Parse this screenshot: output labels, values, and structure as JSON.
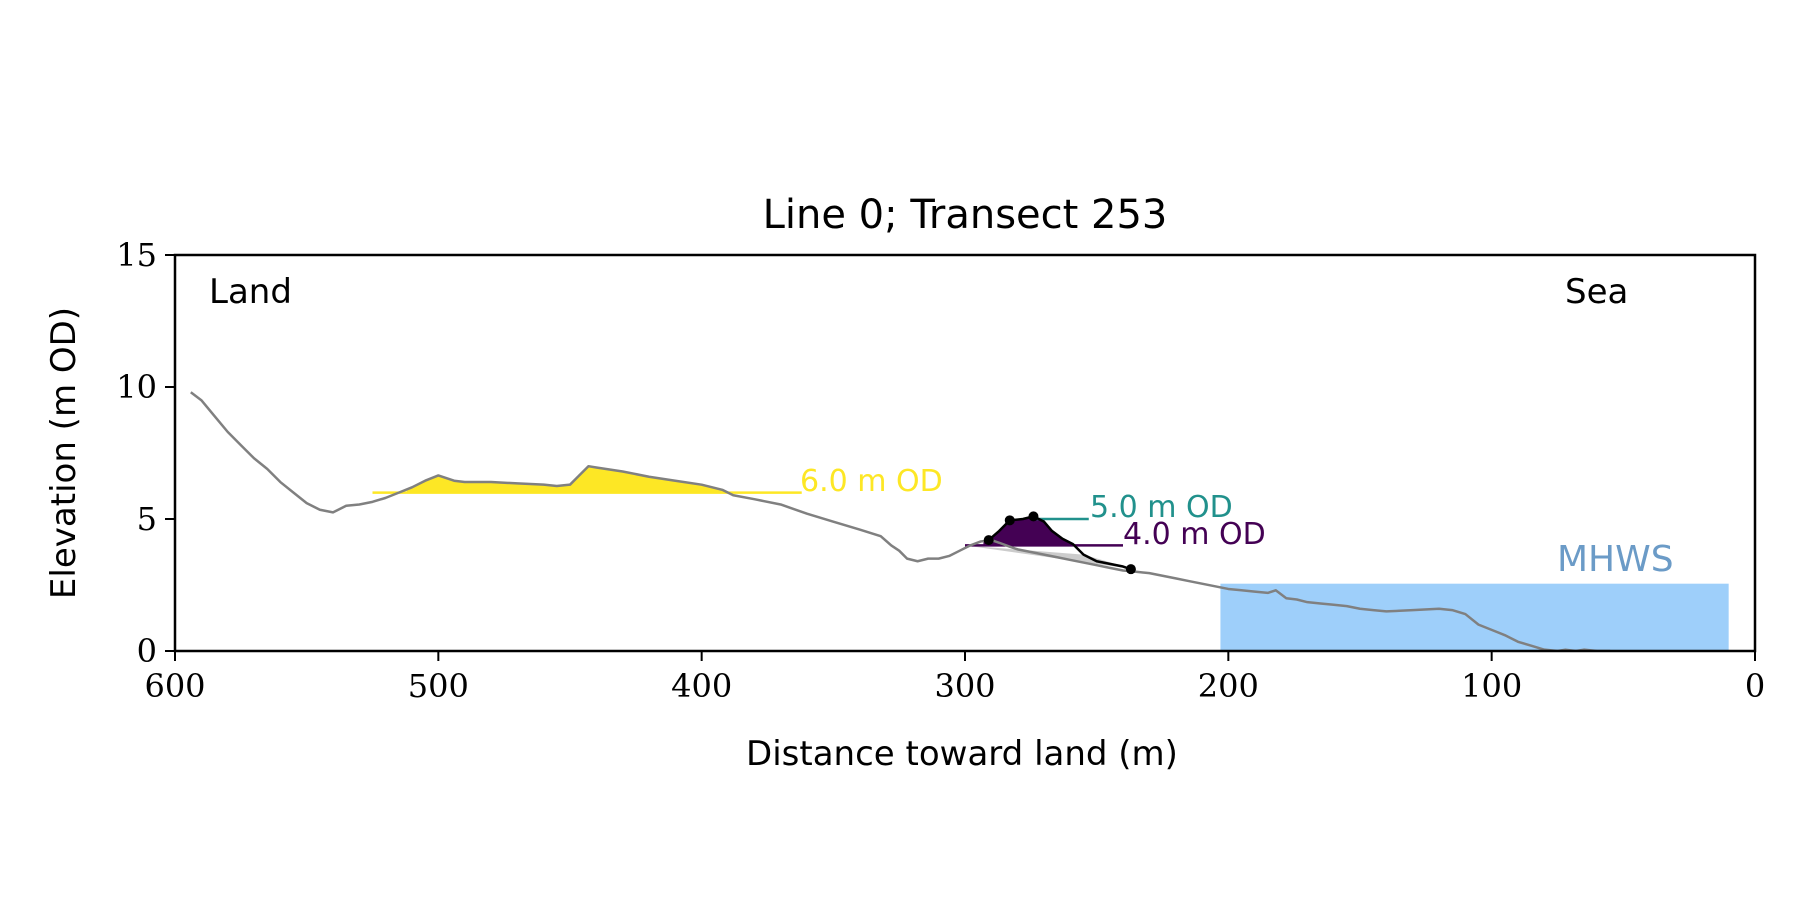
{
  "chart_data": {
    "type": "line",
    "title": "Line 0; Transect 253",
    "xlabel": "Distance toward land (m)",
    "ylabel": "Elevation (m OD)",
    "xlim": [
      600,
      0
    ],
    "ylim": [
      0,
      15
    ],
    "xticks": [
      600,
      500,
      400,
      300,
      200,
      100,
      0
    ],
    "yticks": [
      0,
      5,
      10,
      15
    ],
    "tick_labels_x": [
      "600",
      "500",
      "400",
      "300",
      "200",
      "100",
      "0"
    ],
    "tick_labels_y": [
      "0",
      "5",
      "10",
      "15"
    ],
    "grid": false,
    "legend": "none",
    "annotations": {
      "land": "Land",
      "sea": "Sea",
      "mhws": "MHWS",
      "level6": "6.0 m OD",
      "level5": "5.0 m OD",
      "level4": "4.0 m OD"
    },
    "colors": {
      "profile": "#808080",
      "dune": "#000000",
      "level6": "#fde725",
      "level5": "#21918c",
      "level4": "#440154",
      "mhws_fill": "#9ecffa",
      "mhws_text": "#6b9bc7",
      "shadow": "#cccccc"
    },
    "profile": {
      "x": [
        594,
        590,
        585,
        580,
        575,
        570,
        565,
        560,
        555,
        550,
        545,
        540,
        535,
        530,
        525,
        520,
        515,
        510,
        505,
        500,
        497,
        494,
        490,
        485,
        480,
        470,
        460,
        455,
        450,
        447,
        443,
        440,
        430,
        420,
        410,
        400,
        392,
        388,
        380,
        370,
        360,
        350,
        340,
        332,
        328,
        325,
        322,
        318,
        314,
        310,
        306,
        302,
        298,
        294,
        290,
        287,
        283,
        280,
        275,
        270,
        265,
        260,
        255,
        250,
        245,
        240,
        235,
        230,
        225,
        220,
        215,
        210,
        205,
        200,
        195,
        190,
        185,
        182,
        178,
        174,
        170,
        165,
        160,
        155,
        150,
        145,
        140,
        130,
        120,
        115,
        110,
        105,
        100,
        95,
        90,
        85,
        80,
        75,
        72,
        68,
        65,
        60,
        55
      ],
      "y": [
        9.8,
        9.5,
        8.9,
        8.3,
        7.8,
        7.3,
        6.9,
        6.4,
        6.0,
        5.6,
        5.35,
        5.25,
        5.5,
        5.55,
        5.65,
        5.8,
        6.0,
        6.2,
        6.45,
        6.65,
        6.55,
        6.45,
        6.4,
        6.4,
        6.4,
        6.35,
        6.3,
        6.25,
        6.3,
        6.6,
        7.0,
        6.95,
        6.8,
        6.6,
        6.45,
        6.3,
        6.1,
        5.9,
        5.75,
        5.55,
        5.2,
        4.9,
        4.6,
        4.35,
        4.0,
        3.8,
        3.5,
        3.4,
        3.5,
        3.5,
        3.6,
        3.8,
        4.0,
        4.15,
        4.2,
        4.1,
        3.95,
        3.85,
        3.75,
        3.65,
        3.55,
        3.45,
        3.35,
        3.25,
        3.15,
        3.05,
        3.0,
        2.95,
        2.85,
        2.75,
        2.65,
        2.55,
        2.45,
        2.35,
        2.3,
        2.25,
        2.2,
        2.3,
        2.0,
        1.95,
        1.85,
        1.8,
        1.75,
        1.7,
        1.6,
        1.55,
        1.5,
        1.55,
        1.6,
        1.55,
        1.4,
        1.0,
        0.8,
        0.6,
        0.35,
        0.2,
        0.05,
        0.0,
        0.05,
        0.0,
        0.05,
        0.0,
        0.0
      ]
    },
    "dune_profile": {
      "x": [
        291,
        287,
        283,
        278,
        274,
        270,
        267,
        263,
        259,
        255,
        250,
        245,
        240,
        237
      ],
      "y": [
        4.2,
        4.55,
        4.95,
        5.0,
        5.1,
        4.9,
        4.55,
        4.25,
        4.05,
        3.65,
        3.4,
        3.3,
        3.2,
        3.1
      ]
    },
    "dune_points": {
      "x": [
        291,
        283,
        274,
        237
      ],
      "y": [
        4.2,
        4.95,
        5.1,
        3.1
      ]
    },
    "level_lines": [
      {
        "level": 6.0,
        "x_from": 362,
        "x_to": 525
      },
      {
        "level": 5.0,
        "x_from": 253,
        "x_to": 274
      },
      {
        "level": 4.0,
        "x_from": 240,
        "x_to": 300
      }
    ],
    "filled_regions": [
      {
        "key": "level6",
        "level": 6.0,
        "x_from": 378,
        "x_to": 512
      },
      {
        "key": "level4",
        "level": 4.0,
        "x_from": 257,
        "x_to": 293
      }
    ],
    "shadow_wedge": {
      "x": [
        300,
        255,
        236
      ],
      "y": [
        4.0,
        3.65,
        3.1
      ]
    },
    "mhws": {
      "level": 2.55,
      "x_from": 10,
      "x_to": 203
    }
  }
}
